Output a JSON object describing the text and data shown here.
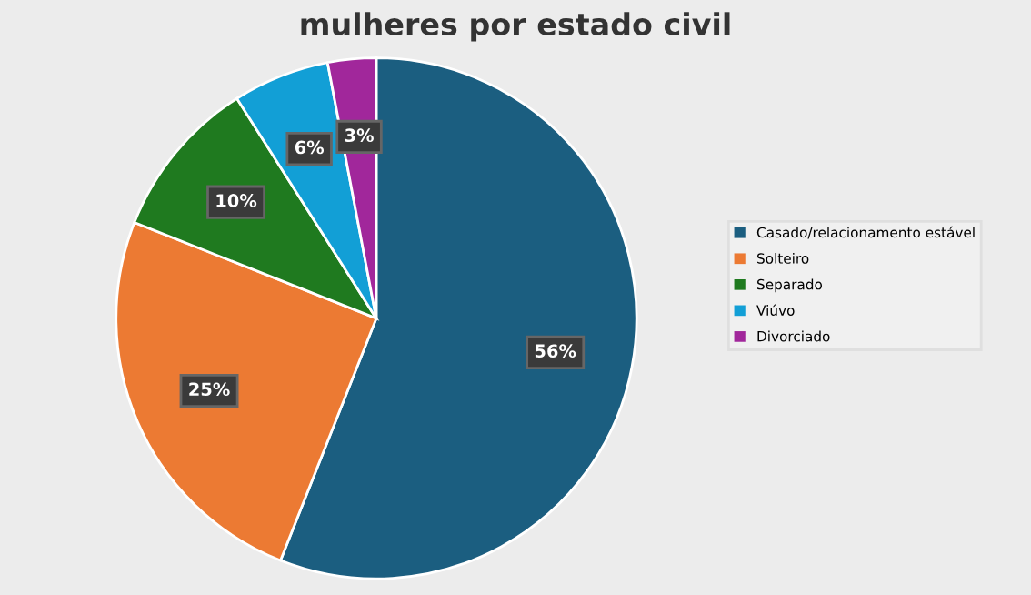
{
  "chart_data": {
    "type": "pie",
    "title": "mulheres por estado civil",
    "categories": [
      "Casado/relacionamento estável",
      "Solteiro",
      "Separado",
      "Viúvo",
      "Divorciado"
    ],
    "values": [
      56,
      25,
      10,
      6,
      3
    ],
    "colors": [
      "#1b5e80",
      "#ec7a33",
      "#1f7a1f",
      "#129fd6",
      "#a1279b"
    ],
    "value_labels": [
      "56%",
      "25%",
      "10%",
      "6%",
      "3%"
    ],
    "legend": "right"
  }
}
